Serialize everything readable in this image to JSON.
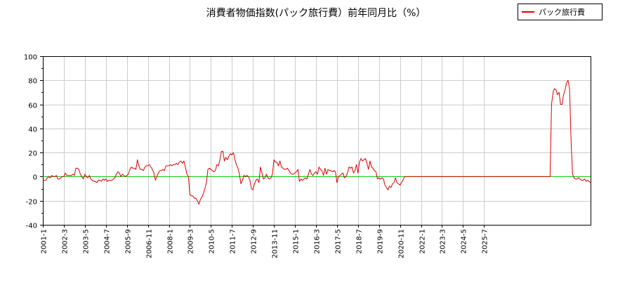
{
  "chart_data": {
    "type": "line",
    "title": "消費者物価指数(パック旅行費）前年同月比（%）",
    "xlabel": "",
    "ylabel": "",
    "ylim": [
      -40,
      100
    ],
    "yticks": [
      -40,
      -20,
      0,
      20,
      40,
      60,
      80,
      100
    ],
    "xticks": [
      "2001-1",
      "2002-3",
      "2003-5",
      "2004-7",
      "2005-9",
      "2006-11",
      "2008-1",
      "2009-3",
      "2010-5",
      "2011-7",
      "2012-9",
      "2013-11",
      "2015-1",
      "2016-3",
      "2017-5",
      "2018-7",
      "2019-9",
      "2020-11",
      "2022-1",
      "2023-3",
      "2024-5",
      "2025-7"
    ],
    "grid": true,
    "legend_position": "top-right",
    "colors": {
      "series": "#dd0000",
      "zero_line": "#00cc00",
      "grid": "#cccccc"
    },
    "series": [
      {
        "name": "パック旅行費",
        "x_start": "2001-1",
        "values": [
          -3,
          -3,
          -3,
          -1,
          0,
          -1,
          1,
          0,
          0,
          1,
          -2,
          -2,
          -1,
          0,
          0,
          3,
          1,
          1,
          1,
          1,
          2,
          1,
          7,
          7,
          6,
          2,
          0,
          -2,
          2,
          0,
          -1,
          1,
          -2,
          -3,
          -4,
          -4,
          -5,
          -3,
          -3,
          -4,
          -2,
          -3,
          -2,
          -4,
          -3,
          -3,
          -3,
          -2,
          -1,
          2,
          4,
          3,
          0,
          2,
          1,
          0,
          1,
          2,
          6,
          8,
          7,
          7,
          6,
          14,
          9,
          6,
          6,
          5,
          8,
          9,
          9,
          10,
          8,
          6,
          3,
          -3,
          0,
          3,
          5,
          5,
          6,
          5,
          9,
          9,
          9,
          10,
          9,
          10,
          10,
          11,
          10,
          12,
          13,
          11,
          13,
          8,
          2,
          0,
          -15,
          -16,
          -16,
          -18,
          -18,
          -20,
          -23,
          -19,
          -17,
          -14,
          -10,
          -5,
          6,
          7,
          6,
          5,
          4,
          5,
          10,
          9,
          14,
          21,
          21,
          13,
          16,
          14,
          17,
          19,
          18,
          20,
          14,
          10,
          7,
          2,
          -6,
          -3,
          1,
          0,
          1,
          0,
          -3,
          -10,
          -11,
          -6,
          -3,
          -2,
          -5,
          8,
          3,
          -2,
          -1,
          2,
          -1,
          -2,
          -1,
          2,
          14,
          12,
          12,
          9,
          13,
          8,
          7,
          6,
          6,
          7,
          5,
          3,
          2,
          2,
          3,
          4,
          6,
          -4,
          -2,
          -3,
          -2,
          -1,
          -2,
          2,
          6,
          2,
          1,
          3,
          4,
          2,
          8,
          6,
          5,
          1,
          7,
          2,
          6,
          5,
          5,
          4,
          5,
          4,
          -5,
          0,
          1,
          2,
          3,
          -1,
          0,
          3,
          8,
          7,
          8,
          3,
          5,
          10,
          3,
          12,
          15,
          13,
          14,
          15,
          11,
          6,
          13,
          8,
          7,
          5,
          4,
          -2,
          -1,
          -2,
          -1,
          -2,
          -7,
          -9,
          -11,
          -8,
          -9,
          -6,
          -5,
          -1,
          -5,
          -6,
          -7,
          -5,
          -3,
          0,
          0,
          0,
          0,
          0,
          0,
          0,
          0,
          0,
          0,
          0,
          0,
          0,
          0,
          0,
          0,
          0,
          0,
          0,
          0,
          0,
          0,
          0,
          0,
          0,
          0,
          0,
          0,
          0,
          0,
          0,
          0,
          0,
          0,
          0,
          0,
          0,
          0,
          0,
          0,
          0,
          0,
          0,
          0,
          0,
          0,
          0,
          0,
          0,
          0,
          0,
          0,
          0,
          0,
          0,
          0,
          0,
          0,
          0,
          0,
          0,
          0,
          0,
          0,
          0,
          0,
          0,
          0,
          0,
          0,
          0,
          0,
          0,
          0,
          0,
          0,
          0,
          0,
          0,
          0,
          0,
          0,
          0,
          0,
          0,
          0,
          0,
          0,
          0,
          0,
          0,
          0,
          0,
          0,
          0,
          0,
          0,
          0,
          60,
          70,
          73,
          72,
          68,
          70,
          60,
          60,
          68,
          72,
          78,
          80,
          73,
          30,
          2,
          -1,
          -2,
          -2,
          -1,
          -2,
          -3,
          -3,
          -2,
          -4,
          -3,
          -4,
          -5
        ]
      }
    ]
  }
}
